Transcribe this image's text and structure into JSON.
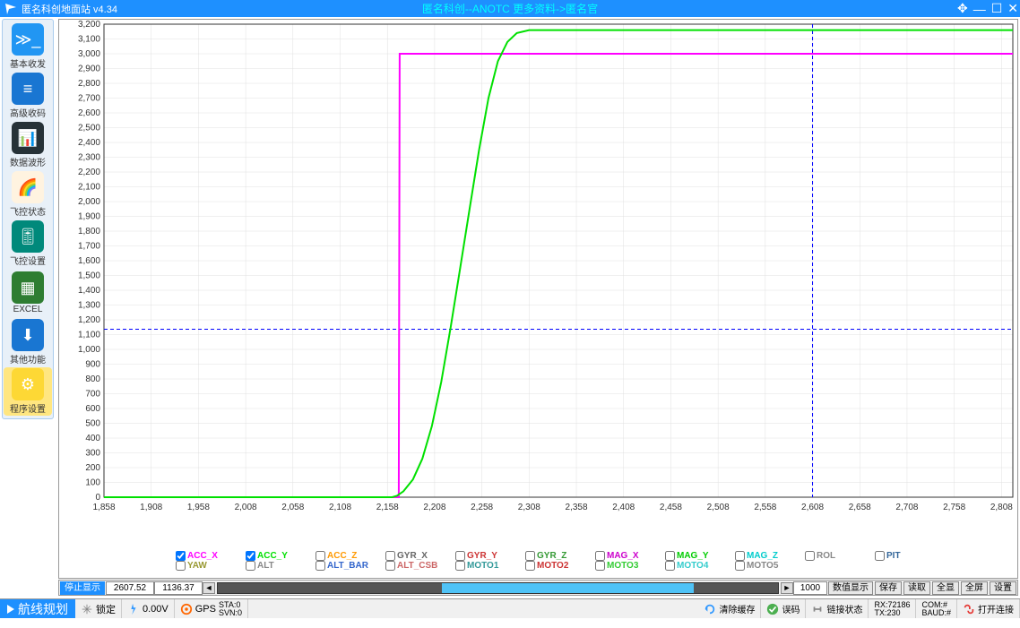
{
  "app": {
    "title": "匿名科创地面站  v4.34",
    "center_text": "匿名科创--ANOTC   更多资料->匿名官"
  },
  "sidebar": {
    "items": [
      {
        "label": "基本收发",
        "icon_bg": "#2196f3",
        "glyph": "≫_"
      },
      {
        "label": "高级收码",
        "icon_bg": "#1976d2",
        "glyph": "≡"
      },
      {
        "label": "数据波形",
        "icon_bg": "#263238",
        "glyph": "📊"
      },
      {
        "label": "飞控状态",
        "icon_bg": "#fff3e0",
        "glyph": "🌈"
      },
      {
        "label": "飞控设置",
        "icon_bg": "#00897b",
        "glyph": "🎚"
      },
      {
        "label": "EXCEL",
        "icon_bg": "#2e7d32",
        "glyph": "▦"
      },
      {
        "label": "其他功能",
        "icon_bg": "#1976d2",
        "glyph": "⬇"
      },
      {
        "label": "程序设置",
        "icon_bg": "#fdd835",
        "glyph": "⚙",
        "selected": true
      }
    ]
  },
  "chart": {
    "xlim": [
      1858,
      2820
    ],
    "ylim": [
      0,
      3200
    ],
    "x_tick_start": 1858,
    "x_tick_step": 50,
    "y_tick_start": 0,
    "y_tick_step": 100,
    "grid_color": "#e0e0e0",
    "axis_color": "#333333",
    "tick_font_size": 10,
    "tick_color": "#333333",
    "cursor_x": 2608,
    "cursor_y": 1136.37,
    "cursor_color": "#0000ff",
    "series": [
      {
        "name": "acc_x",
        "color": "#ff00ff",
        "width": 2,
        "points": [
          [
            1858,
            0
          ],
          [
            2170,
            0
          ],
          [
            2171,
            3000
          ],
          [
            2820,
            3000
          ]
        ]
      },
      {
        "name": "acc_y",
        "color": "#00e000",
        "width": 2,
        "points": [
          [
            1858,
            0
          ],
          [
            2163,
            0
          ],
          [
            2168,
            10
          ],
          [
            2175,
            40
          ],
          [
            2185,
            120
          ],
          [
            2195,
            260
          ],
          [
            2205,
            480
          ],
          [
            2215,
            780
          ],
          [
            2225,
            1150
          ],
          [
            2235,
            1550
          ],
          [
            2245,
            1950
          ],
          [
            2255,
            2350
          ],
          [
            2265,
            2700
          ],
          [
            2275,
            2950
          ],
          [
            2285,
            3080
          ],
          [
            2295,
            3140
          ],
          [
            2308,
            3160
          ],
          [
            2820,
            3160
          ]
        ]
      }
    ]
  },
  "legend": {
    "items": [
      {
        "label": "ACC_X",
        "color": "#ff00ff",
        "checked": true
      },
      {
        "label": "ACC_Y",
        "color": "#00e000",
        "checked": true
      },
      {
        "label": "ACC_Z",
        "color": "#ff9900",
        "checked": false
      },
      {
        "label": "GYR_X",
        "color": "#666666",
        "checked": false
      },
      {
        "label": "GYR_Y",
        "color": "#cc3333",
        "checked": false
      },
      {
        "label": "GYR_Z",
        "color": "#339933",
        "checked": false
      },
      {
        "label": "MAG_X",
        "color": "#cc00cc",
        "checked": false
      },
      {
        "label": "MAG_Y",
        "color": "#00cc00",
        "checked": false
      },
      {
        "label": "MAG_Z",
        "color": "#00cccc",
        "checked": false
      },
      {
        "label": "ROL",
        "color": "#888888",
        "checked": false
      },
      {
        "label": "PIT",
        "color": "#336699",
        "checked": false
      },
      {
        "label": "YAW",
        "color": "#999933",
        "checked": false
      },
      {
        "label": "ALT",
        "color": "#888888",
        "checked": false
      },
      {
        "label": "ALT_BAR",
        "color": "#3366cc",
        "checked": false
      },
      {
        "label": "ALT_CSB",
        "color": "#cc6666",
        "checked": false
      },
      {
        "label": "MOTO1",
        "color": "#339999",
        "checked": false
      },
      {
        "label": "MOTO2",
        "color": "#cc3333",
        "checked": false
      },
      {
        "label": "MOTO3",
        "color": "#33cc33",
        "checked": false
      },
      {
        "label": "MOTO4",
        "color": "#33cccc",
        "checked": false
      },
      {
        "label": "MOTO5",
        "color": "#888888",
        "checked": false
      }
    ]
  },
  "ctrlbar": {
    "stop_label": "停止显示",
    "val1": "2607.52",
    "val2": "1136.37",
    "field3": "1000",
    "buttons": {
      "numeric": "数值显示",
      "save": "保存",
      "read": "读取",
      "all": "全显",
      "full": "全屏",
      "settings": "设置"
    }
  },
  "bottom": {
    "route_label": "航线规划",
    "lock": "锁定",
    "voltage": "0.00V",
    "gps": "GPS",
    "sta": "STA:0",
    "svn": "SVN:0",
    "clear_cache": "清除缓存",
    "error": "误码",
    "link_status": "链接状态",
    "rx": "RX:72186",
    "tx": "TX:230",
    "com": "COM:#",
    "baud": "BAUD:#",
    "open_conn": "打开连接"
  }
}
